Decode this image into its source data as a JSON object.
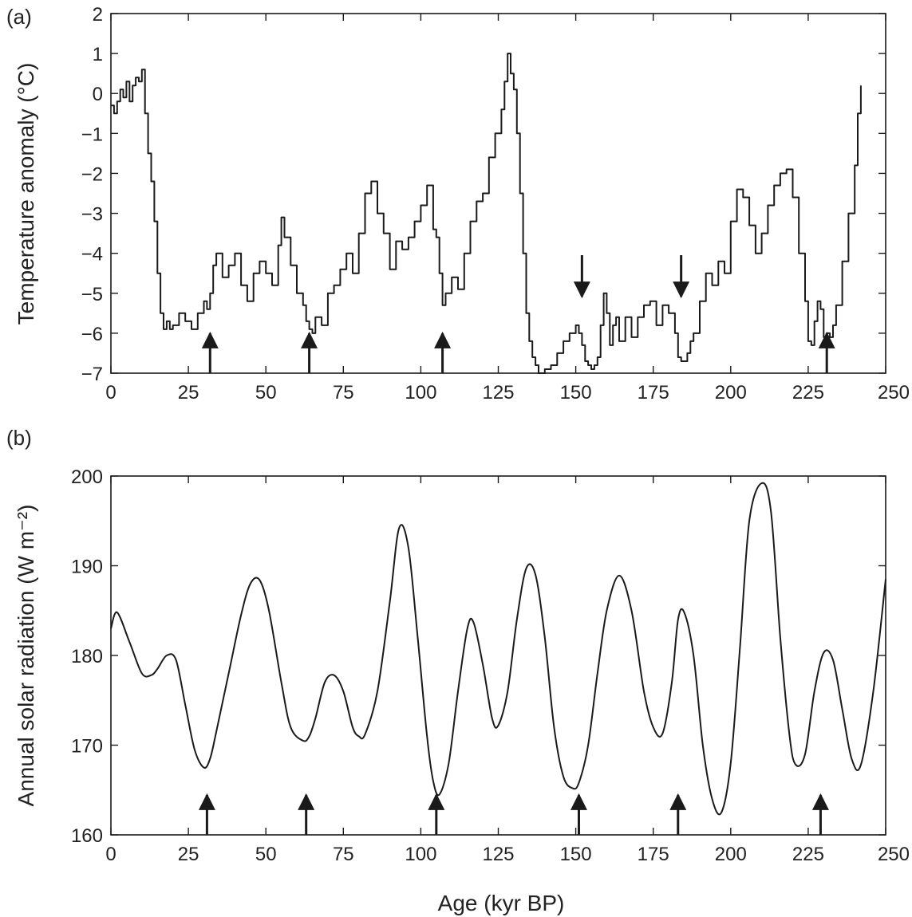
{
  "figure": {
    "xlabel": "Age (kyr BP)"
  },
  "chart_data": [
    {
      "type": "line",
      "panel_label": "(a)",
      "ylabel": "Temperature anomaly (°C)",
      "xlim": [
        0,
        250
      ],
      "ylim": [
        -7,
        2
      ],
      "xticks": [
        0,
        25,
        50,
        75,
        100,
        125,
        150,
        175,
        200,
        225,
        250
      ],
      "xtick_labels": [
        "0",
        "25",
        "50",
        "75",
        "100",
        "125",
        "150",
        "175",
        "200",
        "225",
        "250"
      ],
      "yticks": [
        2,
        1,
        0,
        -1,
        -2,
        -3,
        -4,
        -5,
        -6,
        -7
      ],
      "ytick_labels": [
        "2",
        "1",
        "0",
        "−1",
        "−2",
        "−3",
        "−4",
        "−5",
        "−6",
        "−7"
      ],
      "grid": false,
      "series": [
        {
          "x": [
            0,
            1,
            2,
            3,
            4,
            5,
            6,
            7,
            8,
            9,
            10,
            11,
            12,
            13,
            14,
            15,
            16,
            17,
            18,
            19,
            20,
            22,
            24,
            26,
            28,
            30,
            31,
            32,
            33,
            34,
            36,
            38,
            40,
            42,
            44,
            46,
            48,
            50,
            52,
            54,
            55,
            56,
            58,
            60,
            62,
            63,
            64,
            65,
            66,
            68,
            70,
            72,
            74,
            76,
            78,
            80,
            82,
            84,
            86,
            88,
            90,
            92,
            94,
            96,
            98,
            100,
            102,
            104,
            105,
            106,
            107,
            108,
            110,
            112,
            114,
            116,
            118,
            120,
            122,
            124,
            126,
            127,
            128,
            129,
            130,
            131,
            132,
            133,
            134,
            135,
            136,
            137,
            138,
            140,
            142,
            144,
            146,
            148,
            150,
            151,
            152,
            153,
            154,
            155,
            156,
            157,
            158,
            159,
            160,
            161,
            162,
            163,
            164,
            166,
            168,
            170,
            172,
            174,
            176,
            178,
            180,
            182,
            183,
            184,
            185,
            186,
            187,
            188,
            190,
            192,
            194,
            196,
            198,
            200,
            202,
            204,
            206,
            208,
            210,
            212,
            214,
            216,
            218,
            220,
            222,
            224,
            225,
            226,
            227,
            228,
            229,
            230,
            231,
            232,
            233,
            234,
            236,
            238,
            240,
            241,
            242
          ],
          "y": [
            -0.3,
            -0.5,
            -0.2,
            0.1,
            -0.1,
            0.3,
            -0.2,
            0.2,
            0.4,
            0.3,
            0.6,
            -0.5,
            -1.5,
            -2.2,
            -3.2,
            -4.5,
            -5.5,
            -5.9,
            -5.7,
            -5.9,
            -5.8,
            -5.5,
            -5.7,
            -5.9,
            -5.5,
            -5.2,
            -5.4,
            -5.0,
            -4.3,
            -4.0,
            -4.6,
            -4.3,
            -4.0,
            -4.8,
            -5.2,
            -4.5,
            -4.2,
            -4.5,
            -4.8,
            -3.8,
            -3.1,
            -3.6,
            -4.3,
            -5.0,
            -5.3,
            -5.7,
            -5.9,
            -6.0,
            -5.6,
            -5.8,
            -5.0,
            -4.8,
            -4.4,
            -4.0,
            -4.5,
            -3.5,
            -2.5,
            -2.2,
            -3.0,
            -3.5,
            -4.4,
            -3.7,
            -3.9,
            -3.6,
            -3.2,
            -2.8,
            -2.3,
            -3.4,
            -3.6,
            -4.5,
            -5.3,
            -5.0,
            -4.6,
            -4.9,
            -4.0,
            -3.2,
            -2.7,
            -2.5,
            -1.6,
            -1.0,
            -0.4,
            0.3,
            1.0,
            0.5,
            0.1,
            -1.0,
            -2.5,
            -4.0,
            -5.5,
            -6.2,
            -6.6,
            -6.8,
            -7.0,
            -6.9,
            -6.8,
            -6.5,
            -6.2,
            -6.0,
            -5.8,
            -6.0,
            -6.3,
            -6.7,
            -6.8,
            -6.9,
            -6.8,
            -6.6,
            -5.8,
            -5.0,
            -5.5,
            -6.3,
            -5.8,
            -5.6,
            -6.2,
            -5.6,
            -6.1,
            -5.6,
            -5.3,
            -5.2,
            -5.8,
            -5.3,
            -5.5,
            -6.0,
            -6.6,
            -6.7,
            -6.7,
            -6.5,
            -6.2,
            -6.0,
            -5.2,
            -4.5,
            -4.8,
            -4.2,
            -4.5,
            -3.2,
            -2.4,
            -2.6,
            -3.3,
            -4.0,
            -3.5,
            -2.8,
            -2.3,
            -2.0,
            -1.9,
            -2.6,
            -4.0,
            -5.2,
            -6.2,
            -6.3,
            -5.7,
            -5.2,
            -5.4,
            -6.1,
            -6.0,
            -6.1,
            -5.8,
            -5.3,
            -4.2,
            -3.0,
            -1.8,
            -0.5,
            0.2
          ]
        }
      ],
      "arrows_up": [
        32,
        64,
        107,
        231
      ],
      "arrows_down": [
        152,
        184
      ]
    },
    {
      "type": "line",
      "panel_label": "(b)",
      "ylabel": "Annual solar radiation (W m⁻²)",
      "xlim": [
        0,
        250
      ],
      "ylim": [
        160,
        200
      ],
      "xticks": [
        0,
        25,
        50,
        75,
        100,
        125,
        150,
        175,
        200,
        225,
        250
      ],
      "xtick_labels": [
        "0",
        "25",
        "50",
        "75",
        "100",
        "125",
        "150",
        "175",
        "200",
        "225",
        "250"
      ],
      "yticks": [
        200,
        190,
        180,
        170,
        160
      ],
      "ytick_labels": [
        "200",
        "190",
        "180",
        "170",
        "160"
      ],
      "grid": false,
      "series": [
        {
          "x": [
            0,
            2,
            6,
            10,
            13,
            15,
            18,
            21,
            24,
            27,
            30,
            32,
            34,
            38,
            42,
            45,
            48,
            51,
            55,
            58,
            62,
            64,
            66,
            69,
            72,
            75,
            78,
            80,
            82,
            86,
            90,
            93,
            96,
            99,
            102,
            104,
            106,
            109,
            112,
            115,
            117,
            120,
            123,
            125,
            128,
            131,
            134,
            137,
            140,
            143,
            146,
            149,
            151,
            154,
            157,
            160,
            164,
            168,
            172,
            175,
            178,
            181,
            183,
            185,
            188,
            191,
            194,
            197,
            200,
            203,
            206,
            210,
            213,
            216,
            219,
            221,
            224,
            227,
            230,
            233,
            236,
            239,
            242,
            246,
            250
          ],
          "y": [
            183,
            184.8,
            181.5,
            178,
            177.8,
            178.5,
            180,
            179.5,
            174.5,
            169.5,
            167.5,
            168.5,
            171.5,
            178,
            184.5,
            188,
            188.4,
            185,
            177,
            172,
            170.5,
            171,
            173,
            177,
            177.8,
            176,
            172,
            171,
            171.2,
            176,
            186,
            194.2,
            192,
            182,
            171,
            166,
            164.5,
            168,
            176,
            183,
            183.7,
            179,
            173,
            172.2,
            176,
            184,
            189.7,
            189,
            182,
            172,
            166.5,
            165.2,
            165.8,
            170,
            178,
            185,
            188.9,
            185,
            176,
            172,
            171.3,
            177,
            184,
            184.8,
            180,
            170,
            164,
            162.5,
            168,
            181,
            195,
            199.2,
            196,
            182,
            171,
            167.8,
            169,
            176,
            180.3,
            179.5,
            174,
            168.5,
            167.8,
            176,
            188.5
          ]
        }
      ],
      "arrows_up": [
        31,
        63,
        105,
        151,
        183,
        229
      ]
    }
  ]
}
